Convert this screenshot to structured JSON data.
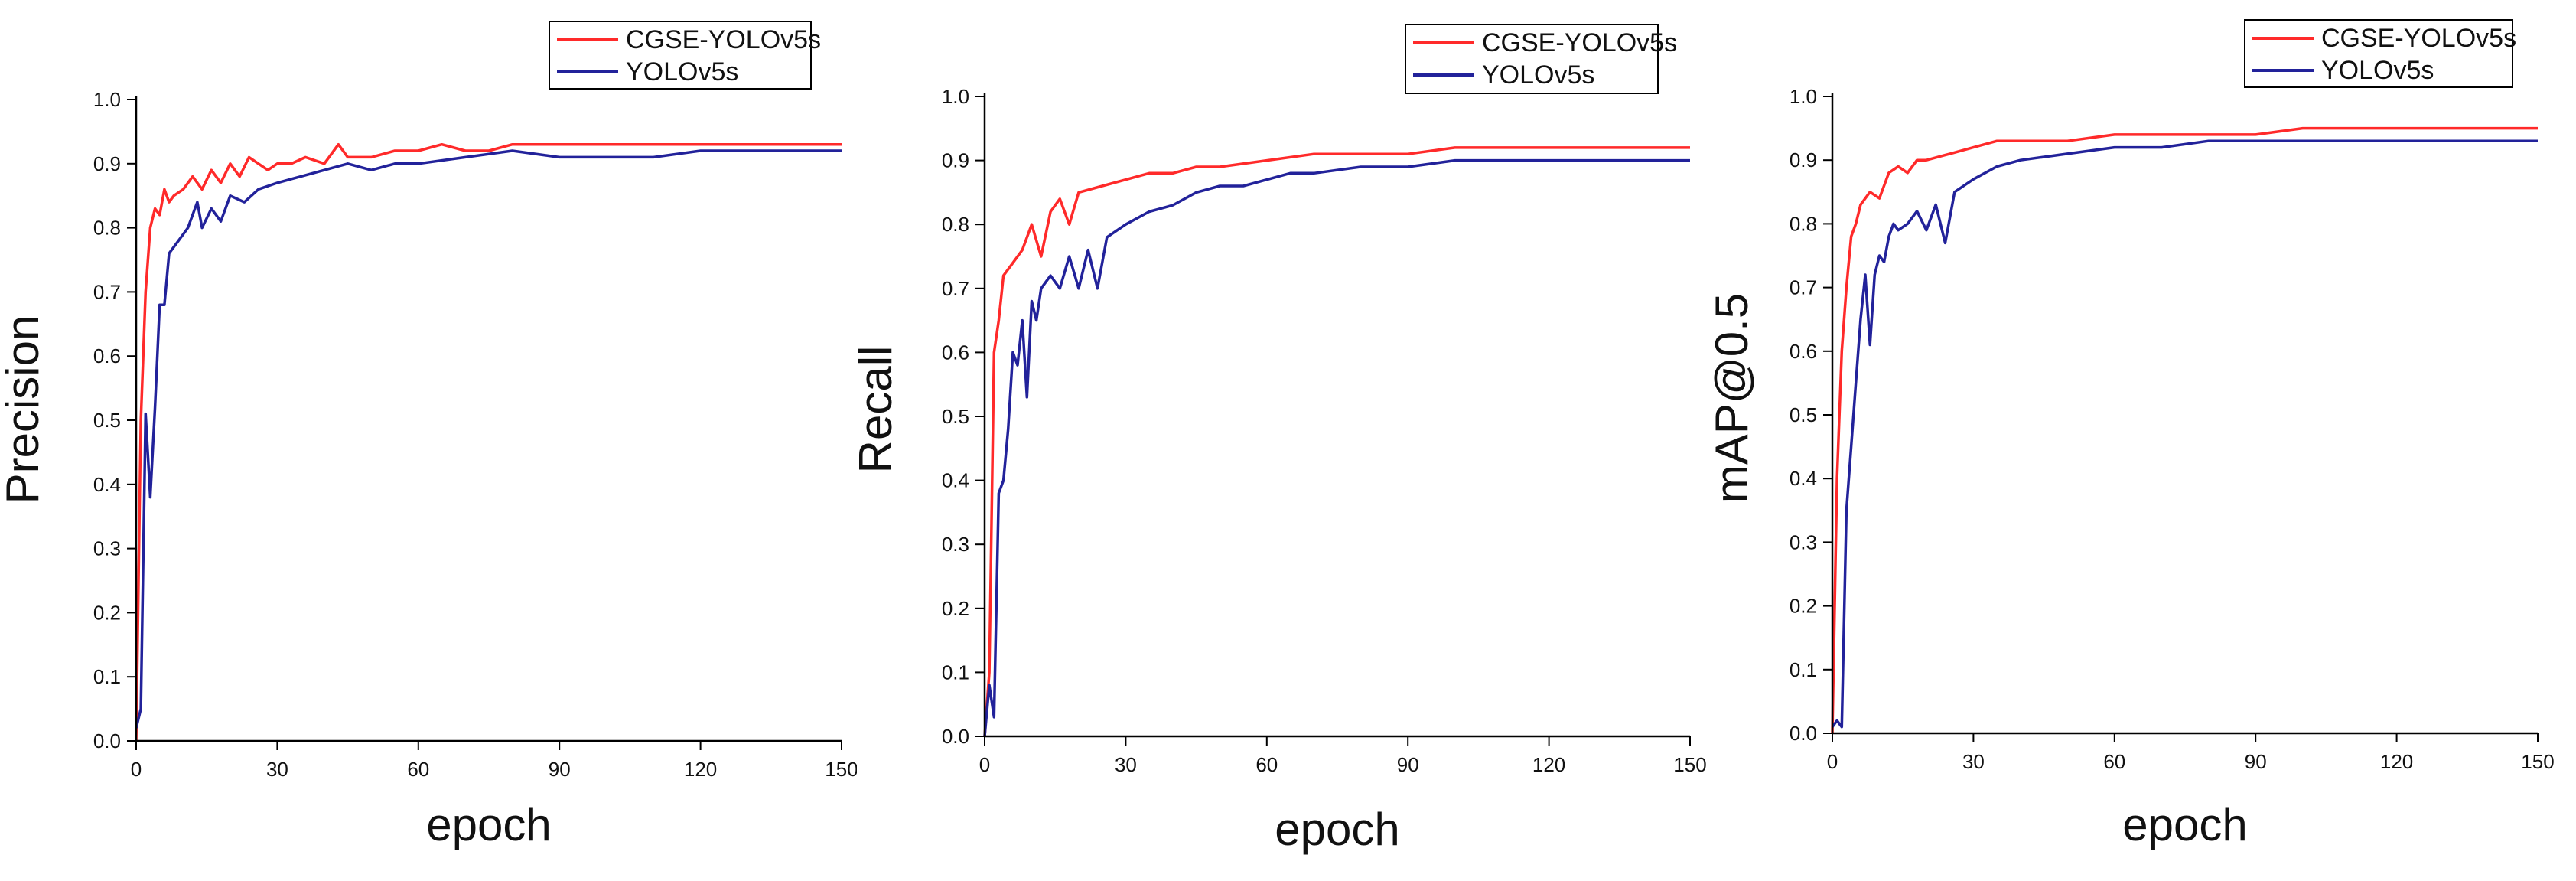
{
  "colors": {
    "cgse": "#ff2a2a",
    "yolo": "#22229a",
    "axis": "#000000"
  },
  "chart_data": [
    {
      "type": "line",
      "xlabel": "epoch",
      "ylabel": "Precision",
      "xlim": [
        0,
        150
      ],
      "ylim": [
        0.0,
        1.0
      ],
      "xticks": [
        0,
        30,
        60,
        90,
        120,
        150
      ],
      "yticks": [
        0.0,
        0.1,
        0.2,
        0.3,
        0.4,
        0.5,
        0.6,
        0.7,
        0.8,
        0.9,
        1.0
      ],
      "legend": [
        "CGSE-YOLOv5s",
        "YOLOv5s"
      ],
      "legend_position": "top-right",
      "series": [
        {
          "name": "CGSE-YOLOv5s",
          "color": "#ff2a2a",
          "x": [
            0,
            1,
            2,
            3,
            4,
            5,
            6,
            7,
            8,
            10,
            12,
            14,
            16,
            18,
            20,
            22,
            24,
            26,
            28,
            30,
            33,
            36,
            40,
            43,
            45,
            50,
            55,
            60,
            65,
            70,
            75,
            80,
            90,
            100,
            110,
            120,
            130,
            140,
            150
          ],
          "y": [
            0.0,
            0.5,
            0.7,
            0.8,
            0.83,
            0.82,
            0.86,
            0.84,
            0.85,
            0.86,
            0.88,
            0.86,
            0.89,
            0.87,
            0.9,
            0.88,
            0.91,
            0.9,
            0.89,
            0.9,
            0.9,
            0.91,
            0.9,
            0.93,
            0.91,
            0.91,
            0.92,
            0.92,
            0.93,
            0.92,
            0.92,
            0.93,
            0.93,
            0.93,
            0.93,
            0.93,
            0.93,
            0.93,
            0.93
          ]
        },
        {
          "name": "YOLOv5s",
          "color": "#22229a",
          "x": [
            0,
            1,
            2,
            3,
            4,
            5,
            6,
            7,
            9,
            11,
            13,
            14,
            16,
            18,
            20,
            23,
            26,
            30,
            35,
            40,
            45,
            50,
            55,
            60,
            70,
            80,
            90,
            100,
            110,
            120,
            130,
            140,
            150
          ],
          "y": [
            0.02,
            0.05,
            0.51,
            0.38,
            0.52,
            0.68,
            0.68,
            0.76,
            0.78,
            0.8,
            0.84,
            0.8,
            0.83,
            0.81,
            0.85,
            0.84,
            0.86,
            0.87,
            0.88,
            0.89,
            0.9,
            0.89,
            0.9,
            0.9,
            0.91,
            0.92,
            0.91,
            0.91,
            0.91,
            0.92,
            0.92,
            0.92,
            0.92
          ]
        }
      ]
    },
    {
      "type": "line",
      "xlabel": "epoch",
      "ylabel": "Recall",
      "xlim": [
        0,
        150
      ],
      "ylim": [
        0.0,
        1.0
      ],
      "xticks": [
        0,
        30,
        60,
        90,
        120,
        150
      ],
      "yticks": [
        0.0,
        0.1,
        0.2,
        0.3,
        0.4,
        0.5,
        0.6,
        0.7,
        0.8,
        0.9,
        1.0
      ],
      "legend": [
        "CGSE-YOLOv5s",
        "YOLOv5s"
      ],
      "legend_position": "top-right",
      "series": [
        {
          "name": "CGSE-YOLOv5s",
          "color": "#ff2a2a",
          "x": [
            0,
            1,
            2,
            3,
            4,
            6,
            8,
            10,
            12,
            14,
            16,
            18,
            20,
            25,
            30,
            35,
            40,
            45,
            50,
            60,
            70,
            80,
            90,
            100,
            110,
            120,
            130,
            140,
            150
          ],
          "y": [
            0.0,
            0.1,
            0.6,
            0.65,
            0.72,
            0.74,
            0.76,
            0.8,
            0.75,
            0.82,
            0.84,
            0.8,
            0.85,
            0.86,
            0.87,
            0.88,
            0.88,
            0.89,
            0.89,
            0.9,
            0.91,
            0.91,
            0.91,
            0.92,
            0.92,
            0.92,
            0.92,
            0.92,
            0.92
          ]
        },
        {
          "name": "YOLOv5s",
          "color": "#22229a",
          "x": [
            0,
            1,
            2,
            3,
            4,
            5,
            6,
            7,
            8,
            9,
            10,
            11,
            12,
            14,
            16,
            18,
            20,
            22,
            24,
            26,
            30,
            35,
            40,
            45,
            50,
            55,
            60,
            65,
            70,
            80,
            90,
            100,
            110,
            120,
            130,
            140,
            150
          ],
          "y": [
            0.0,
            0.08,
            0.03,
            0.38,
            0.4,
            0.48,
            0.6,
            0.58,
            0.65,
            0.53,
            0.68,
            0.65,
            0.7,
            0.72,
            0.7,
            0.75,
            0.7,
            0.76,
            0.7,
            0.78,
            0.8,
            0.82,
            0.83,
            0.85,
            0.86,
            0.86,
            0.87,
            0.88,
            0.88,
            0.89,
            0.89,
            0.9,
            0.9,
            0.9,
            0.9,
            0.9,
            0.9
          ]
        }
      ]
    },
    {
      "type": "line",
      "xlabel": "epoch",
      "ylabel": "mAP@0.5",
      "xlim": [
        0,
        150
      ],
      "ylim": [
        0.0,
        1.0
      ],
      "xticks": [
        0,
        30,
        60,
        90,
        120,
        150
      ],
      "yticks": [
        0.0,
        0.1,
        0.2,
        0.3,
        0.4,
        0.5,
        0.6,
        0.7,
        0.8,
        0.9,
        1.0
      ],
      "legend": [
        "CGSE-YOLOv5s",
        "YOLOv5s"
      ],
      "legend_position": "top-right",
      "series": [
        {
          "name": "CGSE-YOLOv5s",
          "color": "#ff2a2a",
          "x": [
            0,
            1,
            2,
            3,
            4,
            5,
            6,
            8,
            10,
            12,
            14,
            16,
            18,
            20,
            25,
            30,
            35,
            40,
            50,
            60,
            70,
            80,
            90,
            100,
            110,
            120,
            130,
            140,
            150
          ],
          "y": [
            0.0,
            0.4,
            0.6,
            0.7,
            0.78,
            0.8,
            0.83,
            0.85,
            0.84,
            0.88,
            0.89,
            0.88,
            0.9,
            0.9,
            0.91,
            0.92,
            0.93,
            0.93,
            0.93,
            0.94,
            0.94,
            0.94,
            0.94,
            0.95,
            0.95,
            0.95,
            0.95,
            0.95,
            0.95
          ]
        },
        {
          "name": "YOLOv5s",
          "color": "#22229a",
          "x": [
            0,
            1,
            2,
            3,
            4,
            5,
            6,
            7,
            8,
            9,
            10,
            11,
            12,
            13,
            14,
            16,
            18,
            20,
            22,
            24,
            26,
            30,
            35,
            40,
            50,
            60,
            70,
            80,
            90,
            100,
            110,
            120,
            130,
            140,
            150
          ],
          "y": [
            0.01,
            0.02,
            0.01,
            0.35,
            0.45,
            0.55,
            0.65,
            0.72,
            0.61,
            0.72,
            0.75,
            0.74,
            0.78,
            0.8,
            0.79,
            0.8,
            0.82,
            0.79,
            0.83,
            0.77,
            0.85,
            0.87,
            0.89,
            0.9,
            0.91,
            0.92,
            0.92,
            0.93,
            0.93,
            0.93,
            0.93,
            0.93,
            0.93,
            0.93,
            0.93
          ]
        }
      ]
    }
  ]
}
